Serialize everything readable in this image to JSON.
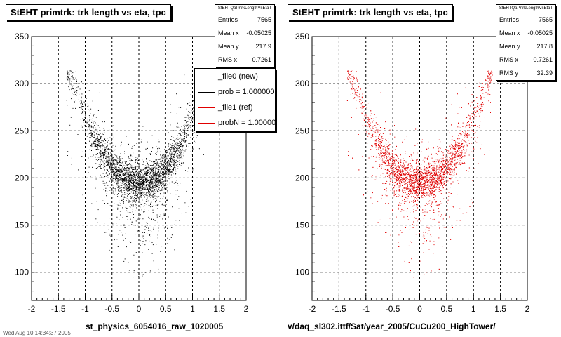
{
  "colors": {
    "black_series": "#000000",
    "red_series": "#e00000",
    "grid": "#000000"
  },
  "chart_data": [
    {
      "type": "scatter",
      "title": "StEHT primtrk: trk length vs eta, tpc",
      "xlim": [
        -2,
        2
      ],
      "ylim": [
        70,
        350
      ],
      "xticks": [
        "-2",
        "-1.5",
        "-1",
        "-0.5",
        "0",
        "0.5",
        "1",
        "1.5",
        "2"
      ],
      "yticks": [
        "100",
        "150",
        "200",
        "250",
        "300",
        "350"
      ],
      "grid": true,
      "color": "#000000",
      "stats": {
        "name": "StEHTQaPrtrkLengthVsEtaT",
        "rows": [
          {
            "label": "Entries",
            "value": "7565"
          },
          {
            "label": "Mean x",
            "value": "-0.05025"
          },
          {
            "label": "Mean y",
            "value": "217.9"
          },
          {
            "label": "RMS x",
            "value": "0.7261"
          }
        ]
      },
      "legend": [
        {
          "label": "_file0 (new)",
          "color": "#000000"
        },
        {
          "label": "prob = 1.000000",
          "color": "#000000"
        },
        {
          "label": "_file1 (ref)",
          "color": "#e00000"
        },
        {
          "label": "probN = 1.000000",
          "color": "#e00000"
        }
      ],
      "footer": "st_physics_6054016_raw_1020005"
    },
    {
      "type": "scatter",
      "title": "StEHT primtrk: trk length vs eta, tpc",
      "xlim": [
        -2,
        2
      ],
      "ylim": [
        70,
        350
      ],
      "xticks": [
        "-2",
        "-1.5",
        "-1",
        "-0.5",
        "0",
        "0.5",
        "1",
        "1.5",
        "2"
      ],
      "yticks": [
        "100",
        "150",
        "200",
        "250",
        "300",
        "350"
      ],
      "grid": true,
      "color": "#e00000",
      "stats": {
        "name": "StEHTQaPrtrkLengthVsEtaT",
        "rows": [
          {
            "label": "Entries",
            "value": "7565"
          },
          {
            "label": "Mean x",
            "value": "-0.05025"
          },
          {
            "label": "Mean y",
            "value": "217.8"
          },
          {
            "label": "RMS x",
            "value": "0.7261"
          },
          {
            "label": "RMS y",
            "value": "32.39"
          }
        ]
      },
      "footer": "v/daq_sl302.ittf/Sat/year_2005/CuCu200_HighTower/"
    }
  ],
  "corner_note": "Wed Aug 10 14:34:37 2005"
}
